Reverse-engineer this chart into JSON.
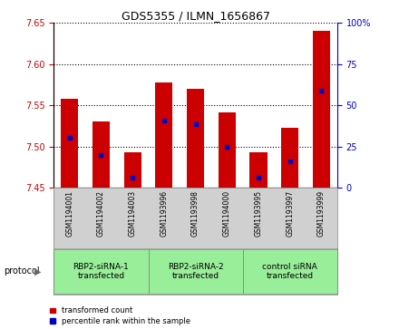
{
  "title": "GDS5355 / ILMN_1656867",
  "samples": [
    "GSM1194001",
    "GSM1194002",
    "GSM1194003",
    "GSM1193996",
    "GSM1193998",
    "GSM1194000",
    "GSM1193995",
    "GSM1193997",
    "GSM1193999"
  ],
  "bar_tops": [
    7.558,
    7.53,
    7.493,
    7.578,
    7.57,
    7.541,
    7.493,
    7.523,
    7.641
  ],
  "bar_bottom": 7.45,
  "blue_values": [
    7.51,
    7.49,
    7.462,
    7.531,
    7.527,
    7.5,
    7.462,
    7.482,
    7.568
  ],
  "ylim_left": [
    7.45,
    7.65
  ],
  "ylim_right": [
    0,
    100
  ],
  "yticks_left": [
    7.45,
    7.5,
    7.55,
    7.6,
    7.65
  ],
  "yticks_right": [
    0,
    25,
    50,
    75,
    100
  ],
  "ytick_labels_right": [
    "0",
    "25",
    "50",
    "75",
    "100%"
  ],
  "bar_color": "#cc0000",
  "blue_color": "#0000cc",
  "bar_width": 0.55,
  "groups": [
    {
      "label": "RBP2-siRNA-1\ntransfected",
      "indices": [
        0,
        1,
        2
      ]
    },
    {
      "label": "RBP2-siRNA-2\ntransfected",
      "indices": [
        3,
        4,
        5
      ]
    },
    {
      "label": "control siRNA\ntransfected",
      "indices": [
        6,
        7,
        8
      ]
    }
  ],
  "group_bg_color": "#99ee99",
  "sample_bg_color": "#d0d0d0",
  "protocol_label": "protocol",
  "legend_red_label": "transformed count",
  "legend_blue_label": "percentile rank within the sample",
  "left_axis_color": "#cc0000",
  "right_axis_color": "#0000cc",
  "borders": [
    -0.5,
    2.5,
    5.5,
    8.5
  ]
}
